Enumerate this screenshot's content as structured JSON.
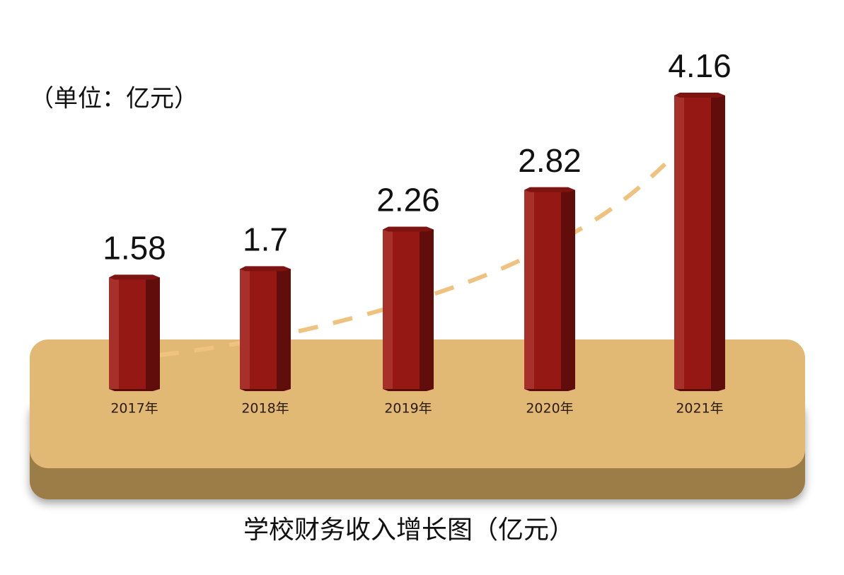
{
  "chart_data": {
    "type": "bar",
    "title": "学校财务收入增长图（亿元）",
    "unit": "（单位：亿元）",
    "categories": [
      "2017年",
      "2018年",
      "2019年",
      "2020年",
      "2021年"
    ],
    "values": [
      1.58,
      1.7,
      2.26,
      2.82,
      4.16
    ],
    "color": "#961815"
  }
}
